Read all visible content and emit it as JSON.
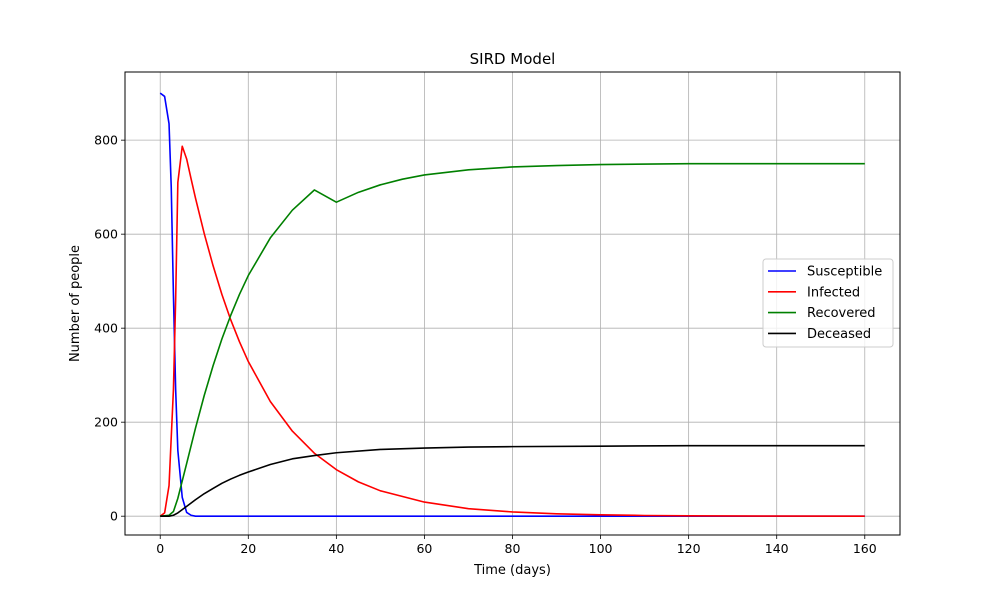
{
  "chart_data": {
    "type": "line",
    "title": "SIRD Model",
    "xlabel": "Time (days)",
    "ylabel": "Number of people",
    "xlim": [
      -8,
      168
    ],
    "ylim": [
      -40,
      945
    ],
    "xticks": [
      0,
      20,
      40,
      60,
      80,
      100,
      120,
      140,
      160
    ],
    "yticks": [
      0,
      200,
      400,
      600,
      800
    ],
    "grid": true,
    "legend_position": "center-right",
    "series": [
      {
        "name": "Susceptible",
        "color": "#0000ff",
        "points": [
          [
            0,
            900
          ],
          [
            1,
            893
          ],
          [
            2,
            835
          ],
          [
            2.5,
            700
          ],
          [
            3,
            470
          ],
          [
            3.5,
            270
          ],
          [
            4,
            140
          ],
          [
            5,
            40
          ],
          [
            6,
            8
          ],
          [
            7,
            2
          ],
          [
            8,
            0
          ],
          [
            10,
            0
          ],
          [
            20,
            0
          ],
          [
            40,
            0
          ],
          [
            60,
            0
          ],
          [
            80,
            0
          ],
          [
            100,
            0
          ],
          [
            120,
            0
          ],
          [
            140,
            0
          ],
          [
            160,
            0
          ]
        ]
      },
      {
        "name": "Infected",
        "color": "#ff0000",
        "points": [
          [
            0,
            0
          ],
          [
            1,
            7
          ],
          [
            2,
            65
          ],
          [
            3,
            270
          ],
          [
            3.5,
            460
          ],
          [
            4,
            710
          ],
          [
            5,
            787
          ],
          [
            6,
            760
          ],
          [
            7,
            718
          ],
          [
            8,
            677
          ],
          [
            10,
            601
          ],
          [
            12,
            533
          ],
          [
            14,
            472
          ],
          [
            16,
            418
          ],
          [
            18,
            371
          ],
          [
            20,
            329
          ],
          [
            25,
            244
          ],
          [
            30,
            181
          ],
          [
            35,
            134
          ],
          [
            40,
            99
          ],
          [
            45,
            73
          ],
          [
            50,
            54
          ],
          [
            60,
            30
          ],
          [
            70,
            16
          ],
          [
            80,
            9
          ],
          [
            90,
            5
          ],
          [
            100,
            3
          ],
          [
            110,
            1.5
          ],
          [
            120,
            0.8
          ],
          [
            140,
            0.2
          ],
          [
            160,
            0
          ]
        ]
      },
      {
        "name": "Recovered",
        "color": "#008000",
        "points": [
          [
            0,
            0
          ],
          [
            2,
            2
          ],
          [
            3,
            10
          ],
          [
            4,
            38
          ],
          [
            5,
            75
          ],
          [
            6,
            112
          ],
          [
            8,
            187
          ],
          [
            10,
            257
          ],
          [
            12,
            320
          ],
          [
            14,
            377
          ],
          [
            16,
            427
          ],
          [
            18,
            472
          ],
          [
            20,
            512
          ],
          [
            25,
            592
          ],
          [
            30,
            651
          ],
          [
            35,
            694
          ],
          [
            40,
            668
          ],
          [
            45,
            689
          ],
          [
            50,
            705
          ],
          [
            55,
            717
          ],
          [
            60,
            726
          ],
          [
            70,
            737
          ],
          [
            80,
            743
          ],
          [
            90,
            746
          ],
          [
            100,
            748
          ],
          [
            120,
            750
          ],
          [
            140,
            750
          ],
          [
            160,
            750
          ]
        ]
      },
      {
        "name": "Deceased",
        "color": "#000000",
        "points": [
          [
            0,
            0
          ],
          [
            2,
            0
          ],
          [
            3,
            2
          ],
          [
            4,
            7
          ],
          [
            5,
            14
          ],
          [
            6,
            21
          ],
          [
            8,
            35
          ],
          [
            10,
            48
          ],
          [
            12,
            59
          ],
          [
            14,
            70
          ],
          [
            16,
            79
          ],
          [
            18,
            87
          ],
          [
            20,
            94
          ],
          [
            25,
            110
          ],
          [
            30,
            122
          ],
          [
            35,
            129
          ],
          [
            40,
            135
          ],
          [
            50,
            142
          ],
          [
            60,
            145
          ],
          [
            70,
            147
          ],
          [
            80,
            148
          ],
          [
            100,
            149
          ],
          [
            120,
            150
          ],
          [
            140,
            150
          ],
          [
            160,
            150
          ]
        ]
      }
    ]
  }
}
